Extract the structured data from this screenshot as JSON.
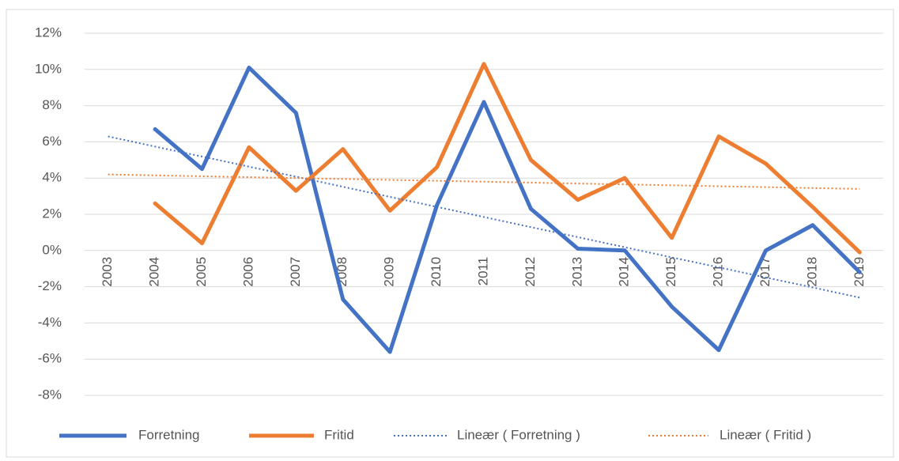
{
  "chart_data": {
    "type": "line",
    "categories": [
      "2003",
      "2004",
      "2005",
      "2006",
      "2007",
      "2008",
      "2009",
      "2010",
      "2011",
      "2012",
      "2013",
      "2014",
      "2015",
      "2016",
      "2017",
      "2018",
      "2019"
    ],
    "series": [
      {
        "name": "Forretning",
        "color": "#4472c4",
        "style": "solid",
        "values": [
          null,
          6.7,
          4.5,
          10.1,
          7.6,
          -2.7,
          -5.6,
          2.5,
          8.2,
          2.3,
          0.1,
          0.0,
          -3.1,
          -5.5,
          0.0,
          1.4,
          -1.2
        ]
      },
      {
        "name": "Fritid",
        "color": "#ed7d31",
        "style": "solid",
        "values": [
          null,
          2.6,
          0.4,
          5.7,
          3.3,
          5.6,
          2.2,
          4.6,
          10.3,
          5.0,
          2.8,
          4.0,
          0.7,
          6.3,
          4.8,
          2.4,
          -0.1
        ]
      },
      {
        "name": "Lineær ( Forretning )",
        "color": "#4472c4",
        "style": "dotted",
        "values": [
          6.3,
          5.74,
          5.19,
          4.63,
          4.08,
          3.52,
          2.96,
          2.41,
          1.85,
          1.29,
          0.74,
          0.18,
          -0.38,
          -0.93,
          -1.49,
          -2.04,
          -2.6
        ]
      },
      {
        "name": "Lineær ( Fritid )",
        "color": "#ed7d31",
        "style": "dotted",
        "values": [
          4.2,
          4.15,
          4.1,
          4.05,
          4.0,
          3.95,
          3.9,
          3.85,
          3.8,
          3.75,
          3.7,
          3.65,
          3.6,
          3.55,
          3.5,
          3.45,
          3.4
        ]
      }
    ],
    "ylim": [
      -8,
      12
    ],
    "yticks": [
      {
        "value": -8,
        "label": "-8%"
      },
      {
        "value": -6,
        "label": "-6%"
      },
      {
        "value": -4,
        "label": "-4%"
      },
      {
        "value": -2,
        "label": "-2%"
      },
      {
        "value": 0,
        "label": "0%"
      },
      {
        "value": 2,
        "label": "2%"
      },
      {
        "value": 4,
        "label": "4%"
      },
      {
        "value": 6,
        "label": "6%"
      },
      {
        "value": 8,
        "label": "8%"
      },
      {
        "value": 10,
        "label": "10%"
      },
      {
        "value": 12,
        "label": "12%"
      }
    ],
    "grid": true,
    "legend": "bottom"
  }
}
